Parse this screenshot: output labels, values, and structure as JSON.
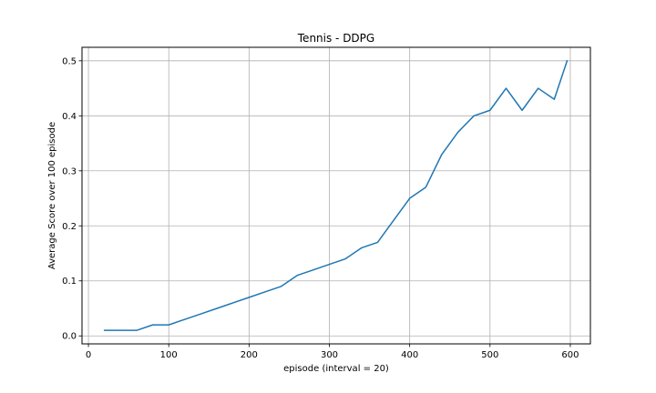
{
  "chart_data": {
    "type": "line",
    "title": "Tennis - DDPG",
    "xlabel": "episode (interval = 20)",
    "ylabel": "Average Score over 100 episode",
    "xlim": [
      -8,
      625
    ],
    "ylim": [
      -0.0145,
      0.5245
    ],
    "grid": true,
    "x_ticks": [
      0,
      100,
      200,
      300,
      400,
      500,
      600
    ],
    "y_ticks": [
      0.0,
      0.1,
      0.2,
      0.3,
      0.4,
      0.5
    ],
    "x_tick_labels": [
      "0",
      "100",
      "200",
      "300",
      "400",
      "500",
      "600"
    ],
    "y_tick_labels": [
      "0.0",
      "0.1",
      "0.2",
      "0.3",
      "0.4",
      "0.5"
    ],
    "series": [
      {
        "color": "#1f77b4",
        "x": [
          20,
          40,
          60,
          80,
          100,
          120,
          140,
          160,
          180,
          200,
          220,
          240,
          260,
          280,
          300,
          320,
          340,
          360,
          380,
          400,
          420,
          440,
          460,
          480,
          500,
          520,
          540,
          560,
          580,
          596
        ],
        "y": [
          0.01,
          0.01,
          0.01,
          0.02,
          0.02,
          0.03,
          0.04,
          0.05,
          0.06,
          0.07,
          0.08,
          0.09,
          0.11,
          0.12,
          0.13,
          0.14,
          0.16,
          0.17,
          0.21,
          0.25,
          0.27,
          0.33,
          0.37,
          0.4,
          0.41,
          0.45,
          0.41,
          0.45,
          0.43,
          0.5
        ]
      }
    ]
  }
}
